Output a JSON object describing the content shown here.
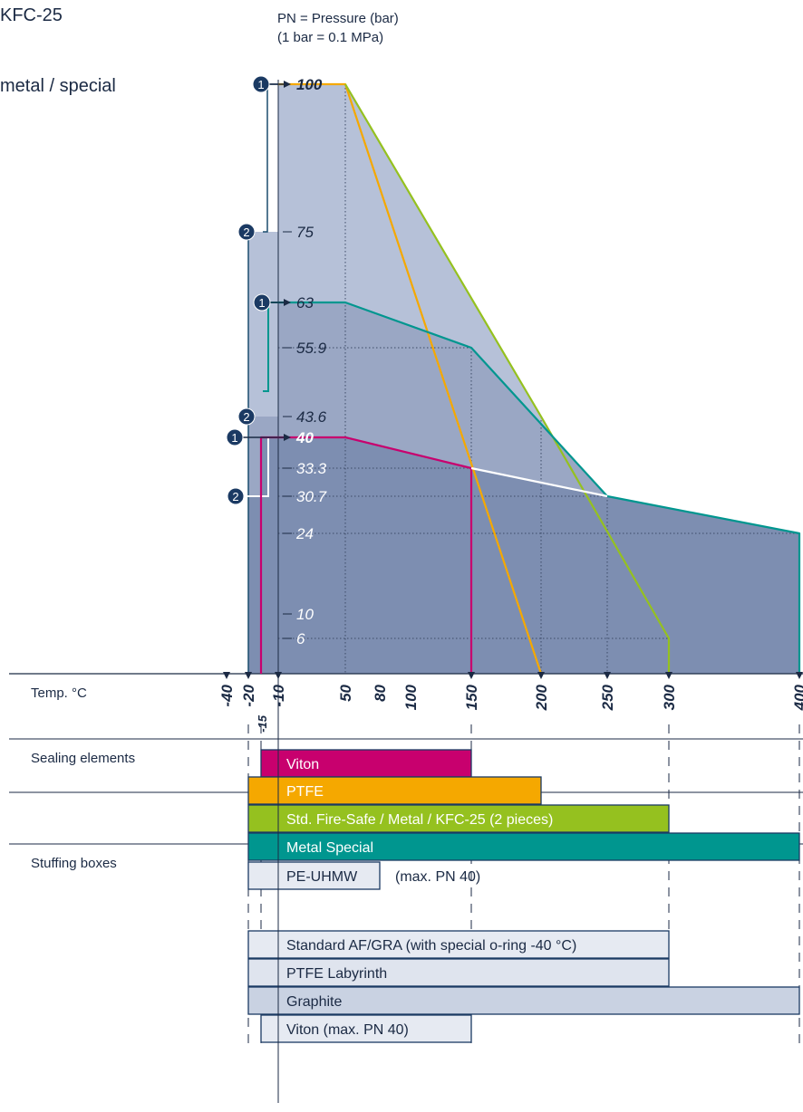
{
  "header": {
    "title_line1": "KFC-25",
    "title_line2": "metal / special",
    "axis_caption_line1": "PN = Pressure (bar)",
    "axis_caption_line2": "(1 bar = 0.1 MPa)"
  },
  "chart_data": {
    "type": "line",
    "ylabel": "PN = Pressure (bar)",
    "xlabel": "Temp. °C",
    "x_ticks": [
      "-40",
      "-20",
      "-15",
      "-10",
      "50",
      "80",
      "100",
      "150",
      "200",
      "250",
      "300",
      "400"
    ],
    "y_ticks": [
      "100",
      "75",
      "63",
      "55.9",
      "43.6",
      "40",
      "33.3",
      "30.7",
      "24",
      "10",
      "6"
    ],
    "series": [
      {
        "color": "#f5a800",
        "points": [
          [
            -10,
            100
          ],
          [
            50,
            100
          ],
          [
            200,
            0
          ]
        ]
      },
      {
        "color": "#95c11f",
        "points": [
          [
            50,
            100
          ],
          [
            200,
            43.6
          ],
          [
            300,
            6
          ],
          [
            300,
            0
          ]
        ]
      },
      {
        "color": "#00968f",
        "points": [
          [
            -10,
            63
          ],
          [
            50,
            63
          ],
          [
            150,
            55.9
          ],
          [
            250,
            30.7
          ],
          [
            400,
            24
          ],
          [
            400,
            0
          ]
        ]
      },
      {
        "color": "#c8006e",
        "points": [
          [
            -15,
            0
          ],
          [
            -15,
            40
          ],
          [
            50,
            40
          ],
          [
            150,
            33.3
          ],
          [
            150,
            0
          ]
        ]
      },
      {
        "color": "#ffffff",
        "points": [
          [
            150,
            33.3
          ],
          [
            250,
            30.7
          ]
        ]
      }
    ],
    "markers": [
      {
        "label": "1",
        "y": 100
      },
      {
        "label": "2",
        "y": 75
      },
      {
        "label": "1",
        "y": 63
      },
      {
        "label": "2",
        "y": 43.6
      },
      {
        "label": "1",
        "y": 40
      },
      {
        "label": "2",
        "y": 30.7
      }
    ]
  },
  "sections": {
    "sealing_label": "Sealing elements",
    "stuffing_label": "Stuffing boxes"
  },
  "bars": [
    {
      "text": "Viton",
      "from": -15,
      "to": 150,
      "color": "#c8006e",
      "text_color": "#ffffff"
    },
    {
      "text": "PTFE",
      "from": -20,
      "to": 200,
      "color": "#f5a800",
      "text_color": "#ffffff"
    },
    {
      "text": "Std. Fire-Safe / Metal / KFC-25 (2 pieces)",
      "from": -20,
      "to": 300,
      "color": "#95c11f",
      "text_color": "#ffffff"
    },
    {
      "text": "Metal Special",
      "from": -20,
      "to": 400,
      "color": "#00968f",
      "text_color": "#ffffff"
    },
    {
      "text": "PE-UHMW",
      "from": -20,
      "to": 80,
      "color": "#e6eaf2",
      "text_color": "#1b2a44",
      "note": "(max. PN 40)"
    },
    {
      "text": "Standard AF/GRA (with special o-ring -40 °C)",
      "from": -20,
      "to": 300,
      "color": "#e6eaf2",
      "text_color": "#1b2a44"
    },
    {
      "text": "PTFE Labyrinth",
      "from": -20,
      "to": 300,
      "color": "#dfe4ee",
      "text_color": "#1b2a44"
    },
    {
      "text": "Graphite",
      "from": -20,
      "to": 400,
      "color": "#c9d2e2",
      "text_color": "#1b2a44"
    },
    {
      "text": "Viton (max. PN 40)",
      "from": -15,
      "to": 150,
      "color": "#e6eaf2",
      "text_color": "#1b2a44"
    }
  ]
}
